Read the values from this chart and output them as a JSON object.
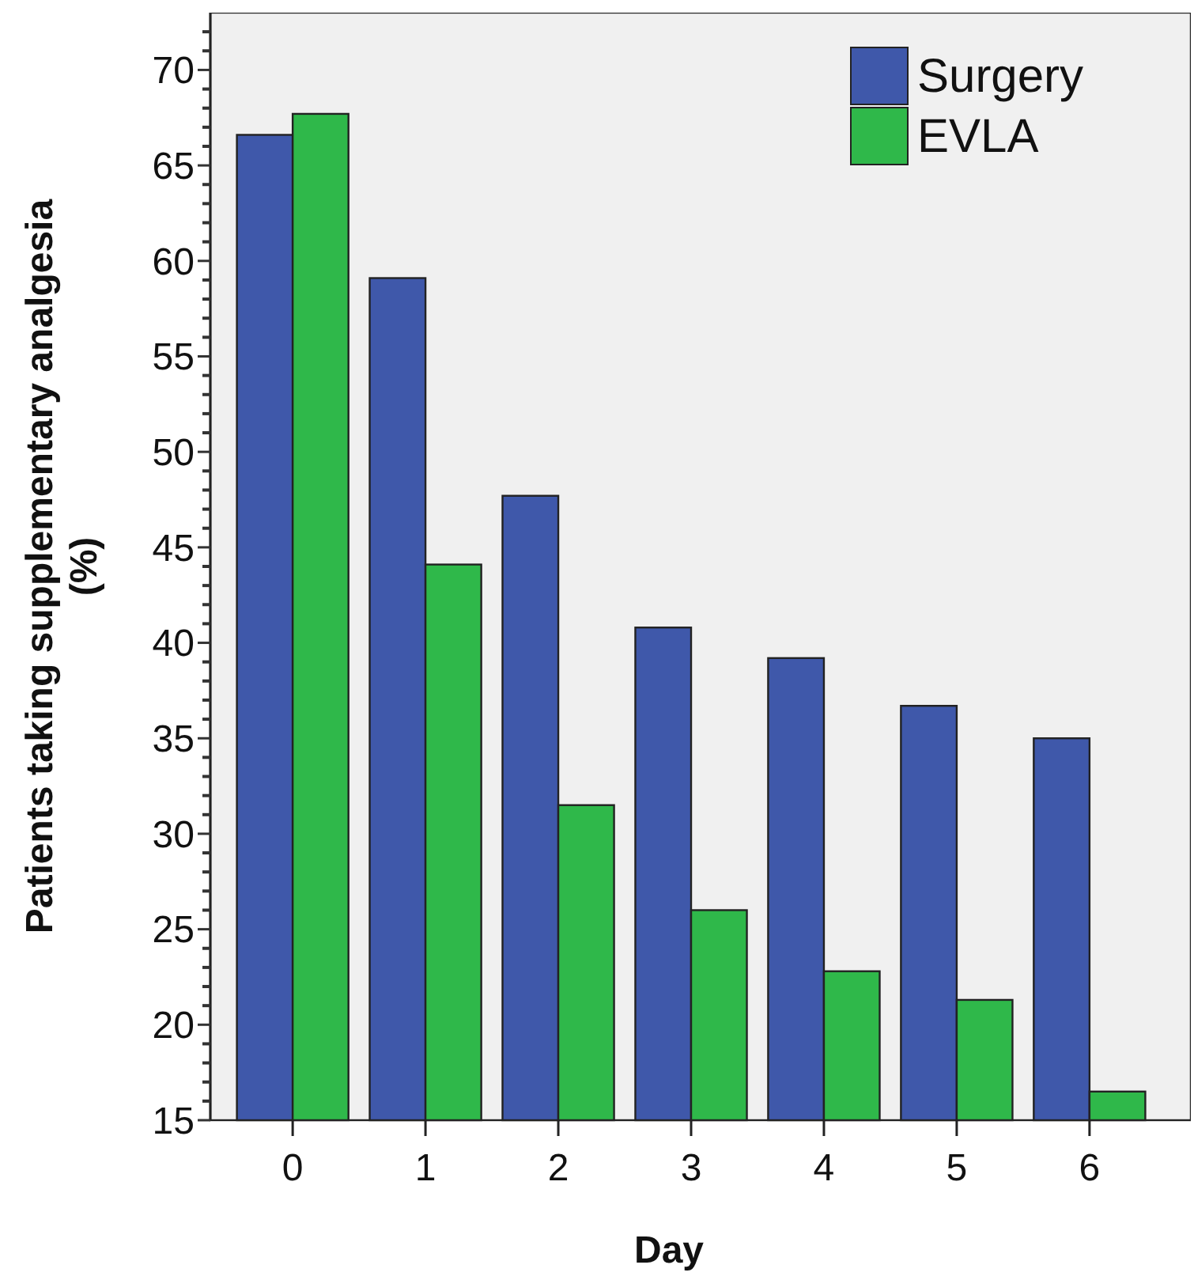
{
  "chart_data": {
    "type": "bar",
    "xlabel": "Day",
    "ylabel": "Patients taking supplementary analgesia\n(%)",
    "categories": [
      "0",
      "1",
      "2",
      "3",
      "4",
      "5",
      "6"
    ],
    "series": [
      {
        "name": "Surgery",
        "color": "#3f58aa",
        "values": [
          66.6,
          59.1,
          47.7,
          40.8,
          39.2,
          36.7,
          35.0
        ]
      },
      {
        "name": "EVLA",
        "color": "#2fb84a",
        "values": [
          67.7,
          44.1,
          31.5,
          26.0,
          22.8,
          21.3,
          16.5
        ]
      }
    ],
    "ylim": [
      15,
      73
    ],
    "yticks": [
      15,
      {
        "value": 16,
        "label": null
      },
      {
        "value": 17,
        "label": null
      },
      {
        "value": 18,
        "label": null
      },
      {
        "value": 19,
        "label": null
      },
      20,
      {
        "value": 21,
        "label": null
      },
      {
        "value": 22,
        "label": null
      },
      {
        "value": 23,
        "label": null
      },
      {
        "value": 24,
        "label": null
      },
      25,
      {
        "value": 26,
        "label": null
      },
      {
        "value": 27,
        "label": null
      },
      {
        "value": 28,
        "label": null
      },
      {
        "value": 29,
        "label": null
      },
      30,
      {
        "value": 31,
        "label": null
      },
      {
        "value": 32,
        "label": null
      },
      {
        "value": 33,
        "label": null
      },
      {
        "value": 34,
        "label": null
      },
      35,
      {
        "value": 36,
        "label": null
      },
      {
        "value": 37,
        "label": null
      },
      {
        "value": 38,
        "label": null
      },
      {
        "value": 39,
        "label": null
      },
      40,
      {
        "value": 41,
        "label": null
      },
      {
        "value": 42,
        "label": null
      },
      {
        "value": 43,
        "label": null
      },
      {
        "value": 44,
        "label": null
      },
      45,
      {
        "value": 46,
        "label": null
      },
      {
        "value": 47,
        "label": null
      },
      {
        "value": 48,
        "label": null
      },
      {
        "value": 49,
        "label": null
      },
      50,
      {
        "value": 51,
        "label": null
      },
      {
        "value": 52,
        "label": null
      },
      {
        "value": 53,
        "label": null
      },
      {
        "value": 54,
        "label": null
      },
      55,
      {
        "value": 56,
        "label": null
      },
      {
        "value": 57,
        "label": null
      },
      {
        "value": 58,
        "label": null
      },
      {
        "value": 59,
        "label": null
      },
      60,
      {
        "value": 61,
        "label": null
      },
      {
        "value": 62,
        "label": null
      },
      {
        "value": 63,
        "label": null
      },
      {
        "value": 64,
        "label": null
      },
      65,
      {
        "value": 66,
        "label": null
      },
      {
        "value": 67,
        "label": null
      },
      {
        "value": 68,
        "label": null
      },
      {
        "value": 69,
        "label": null
      },
      70,
      {
        "value": 71,
        "label": null
      },
      {
        "value": 72,
        "label": null
      }
    ],
    "grid": false,
    "legend": "top right"
  }
}
